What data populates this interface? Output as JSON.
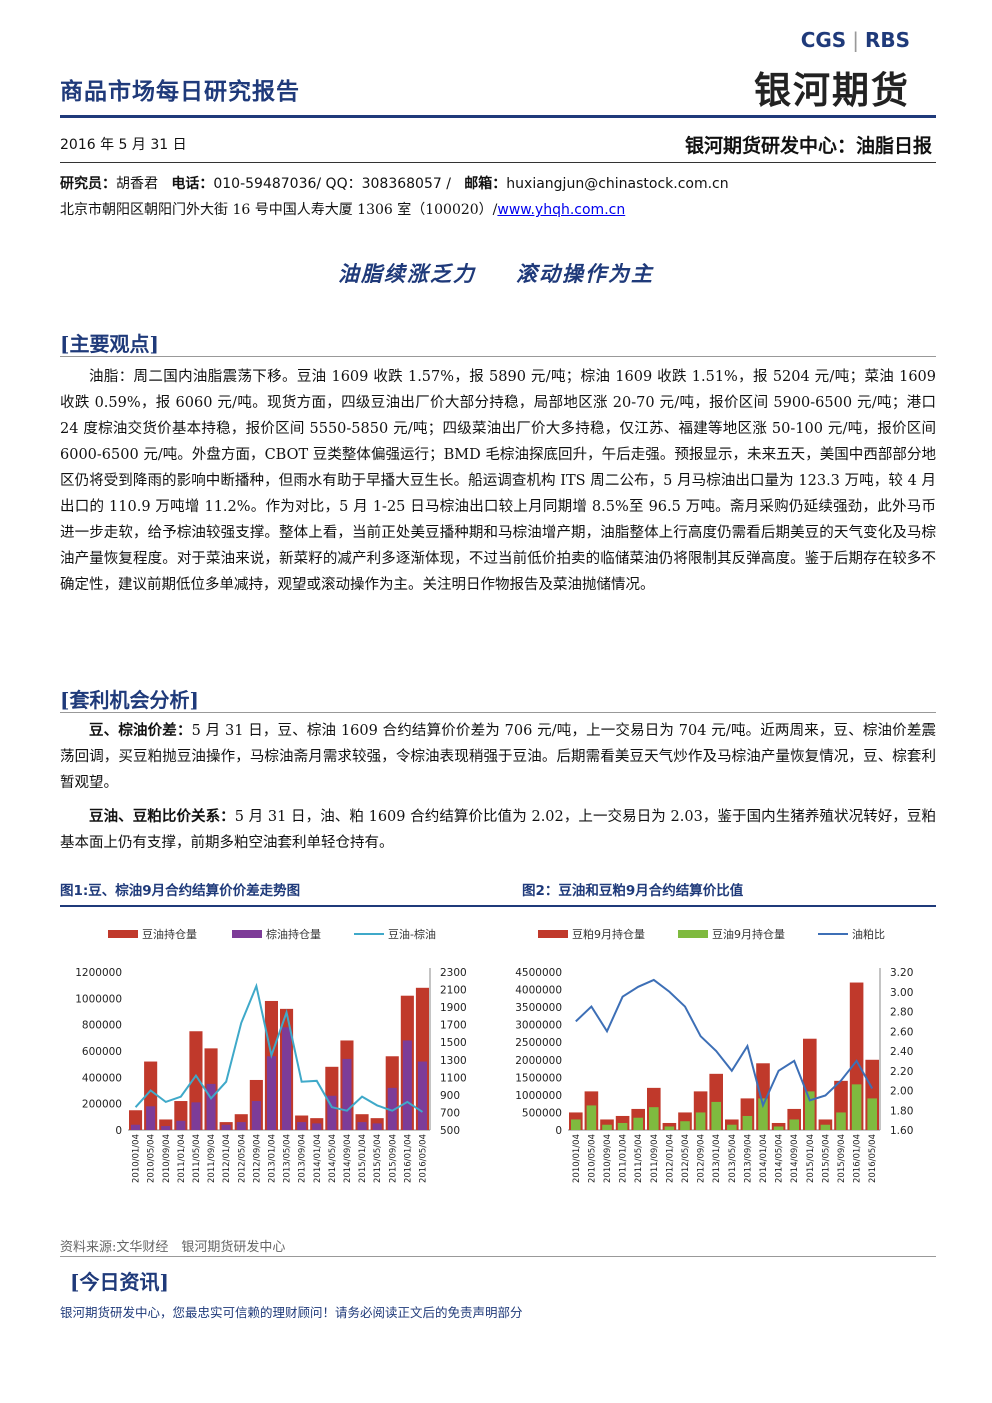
{
  "header": {
    "report_title": "商品市场每日研究报告",
    "brand_cgs": "CGS",
    "brand_rbs": "RBS",
    "brand_cn": "银河期货",
    "date": "2016 年 5 月 31 日",
    "center": "银河期货研发中心：油脂日报"
  },
  "contact": {
    "researcher_label": "研究员：",
    "researcher": "胡香君",
    "phone_label": "电话：",
    "phone": "010-59487036/ QQ：308368057 /",
    "email_label": "邮箱：",
    "email": "huxiangjun@chinastock.com.cn",
    "address": "北京市朝阳区朝阳门外大街 16 号中国人寿大厦 1306 室（100020）/",
    "website": "www.yhqh.com.cn"
  },
  "title": {
    "part1": "油脂续涨乏力",
    "part2": "滚动操作为主"
  },
  "section_main": {
    "heading": "[主要观点]",
    "body": "油脂：周二国内油脂震荡下移。豆油 1609 收跌 1.57%，报 5890 元/吨；棕油 1609 收跌 1.51%，报 5204 元/吨；菜油 1609 收跌 0.59%，报 6060 元/吨。现货方面，四级豆油出厂价大部分持稳，局部地区涨 20-70 元/吨，报价区间 5900-6500 元/吨；港口 24 度棕油交货价基本持稳，报价区间 5550-5850 元/吨；四级菜油出厂价大多持稳，仅江苏、福建等地区涨 50-100 元/吨，报价区间 6000-6500 元/吨。外盘方面，CBOT 豆类整体偏强运行；BMD 毛棕油探底回升，午后走强。预报显示，未来五天，美国中西部部分地区仍将受到降雨的影响中断播种，但雨水有助于早播大豆生长。船运调查机构 ITS 周二公布，5 月马棕油出口量为 123.3 万吨，较 4 月出口的 110.9 万吨增 11.2%。作为对比，5 月 1-25 日马棕油出口较上月同期增 8.5%至 96.5 万吨。斋月采购仍延续强劲，此外马币进一步走软，给予棕油较强支撑。整体上看，当前正处美豆播种期和马棕油增产期，油脂整体上行高度仍需看后期美豆的天气变化及马棕油产量恢复程度。对于菜油来说，新菜籽的减产利多逐渐体现，不过当前低价拍卖的临储菜油仍将限制其反弹高度。鉴于后期存在较多不确定性，建议前期低位多单减持，观望或滚动操作为主。关注明日作物报告及菜油抛储情况。"
  },
  "section_arb": {
    "heading": "[套利机会分析]",
    "p1_label": "豆、棕油价差：",
    "p1_body": "5 月 31 日，豆、棕油 1609 合约结算价价差为 706 元/吨，上一交易日为 704 元/吨。近两周来，豆、棕油价差震荡回调，买豆粕抛豆油操作，马棕油斋月需求较强，令棕油表现稍强于豆油。后期需看美豆天气炒作及马棕油产量恢复情况，豆、棕套利暂观望。",
    "p2_label": "豆油、豆粕比价关系：",
    "p2_body": "5 月 31 日，油、粕 1609 合约结算价比值为 2.02，上一交易日为 2.03，鉴于国内生猪养殖状况转好，豆粕基本面上仍有支撑，前期多粕空油套利单轻仓持有。"
  },
  "figures": {
    "fig1_caption": "图1:豆、棕油9月合约结算价价差走势图",
    "fig2_caption": "图2：豆油和豆粕9月合约结算价比值",
    "source": "资料来源:文华财经　银河期货研发中心"
  },
  "chart_data": [
    {
      "type": "bar",
      "secondary_type": "line",
      "legend": [
        "豆油持仓量",
        "棕油持仓量",
        "豆油-棕油"
      ],
      "legend_position": "top",
      "colors": [
        "#c0392b",
        "#7d3c98",
        "#3fa9c9"
      ],
      "y_left_ticks": [
        "1200000",
        "1000000",
        "800000",
        "600000",
        "400000",
        "200000",
        "0"
      ],
      "y_right_ticks": [
        "2300",
        "2100",
        "1900",
        "1700",
        "1500",
        "1300",
        "1100",
        "900",
        "700",
        "500"
      ],
      "ylim_left": [
        0,
        1200000
      ],
      "ylim_right": [
        500,
        2300
      ],
      "x_ticks": [
        "2010/01/04",
        "2010/05/04",
        "2010/09/04",
        "2011/01/04",
        "2011/05/04",
        "2011/09/04",
        "2012/01/04",
        "2012/05/04",
        "2012/09/04",
        "2013/01/04",
        "2013/05/04",
        "2013/09/04",
        "2014/01/04",
        "2014/05/04",
        "2014/09/04",
        "2015/01/04",
        "2015/05/04",
        "2015/09/04",
        "2016/01/04",
        "2016/05/04"
      ],
      "soy_oi": [
        150000,
        520000,
        80000,
        220000,
        750000,
        620000,
        60000,
        120000,
        380000,
        980000,
        920000,
        110000,
        90000,
        480000,
        680000,
        120000,
        90000,
        560000,
        1020000,
        1080000
      ],
      "palm_oi": [
        40000,
        180000,
        30000,
        70000,
        210000,
        350000,
        40000,
        60000,
        220000,
        560000,
        780000,
        60000,
        50000,
        260000,
        540000,
        60000,
        50000,
        320000,
        680000,
        520000
      ],
      "spread": [
        760,
        950,
        820,
        880,
        1120,
        860,
        1050,
        1720,
        2140,
        1350,
        1840,
        1050,
        1060,
        760,
        720,
        880,
        780,
        720,
        820,
        706
      ]
    },
    {
      "type": "bar",
      "secondary_type": "line",
      "legend": [
        "豆粕9月持仓量",
        "豆油9月持仓量",
        "油粕比"
      ],
      "legend_position": "top",
      "colors": [
        "#c0392b",
        "#7fba3f",
        "#3d6fb6"
      ],
      "y_left_ticks": [
        "4500000",
        "4000000",
        "3500000",
        "3000000",
        "2500000",
        "2000000",
        "1500000",
        "1000000",
        "500000",
        "0"
      ],
      "y_right_ticks": [
        "3.20",
        "3.00",
        "2.80",
        "2.60",
        "2.40",
        "2.20",
        "2.00",
        "1.80",
        "1.60"
      ],
      "ylim_left": [
        0,
        4500000
      ],
      "ylim_right": [
        1.6,
        3.2
      ],
      "x_ticks": [
        "2010/01/04",
        "2010/05/04",
        "2010/09/04",
        "2011/01/04",
        "2011/05/04",
        "2011/09/04",
        "2012/01/04",
        "2012/05/04",
        "2012/09/04",
        "2013/01/04",
        "2013/05/04",
        "2013/09/04",
        "2014/01/04",
        "2014/05/04",
        "2014/09/04",
        "2015/01/04",
        "2015/05/04",
        "2015/09/04",
        "2016/01/04",
        "2016/05/04"
      ],
      "meal_oi": [
        500000,
        1100000,
        300000,
        400000,
        600000,
        1200000,
        200000,
        500000,
        1100000,
        1600000,
        300000,
        900000,
        1900000,
        200000,
        600000,
        2600000,
        300000,
        1400000,
        4200000,
        2000000
      ],
      "oil_oi": [
        300000,
        700000,
        150000,
        200000,
        350000,
        650000,
        100000,
        250000,
        500000,
        800000,
        150000,
        400000,
        900000,
        100000,
        300000,
        1100000,
        150000,
        500000,
        1300000,
        900000
      ],
      "ratio": [
        2.7,
        2.85,
        2.6,
        2.95,
        3.05,
        3.12,
        3.0,
        2.85,
        2.55,
        2.4,
        2.2,
        2.45,
        1.85,
        2.2,
        2.3,
        1.9,
        1.95,
        2.1,
        2.3,
        2.02
      ]
    }
  ],
  "section_news": {
    "heading": "[今日资讯]"
  },
  "footer": {
    "text": "银河期货研发中心，您最忠实可信赖的理财顾问！请务必阅读正文后的免责声明部分"
  }
}
